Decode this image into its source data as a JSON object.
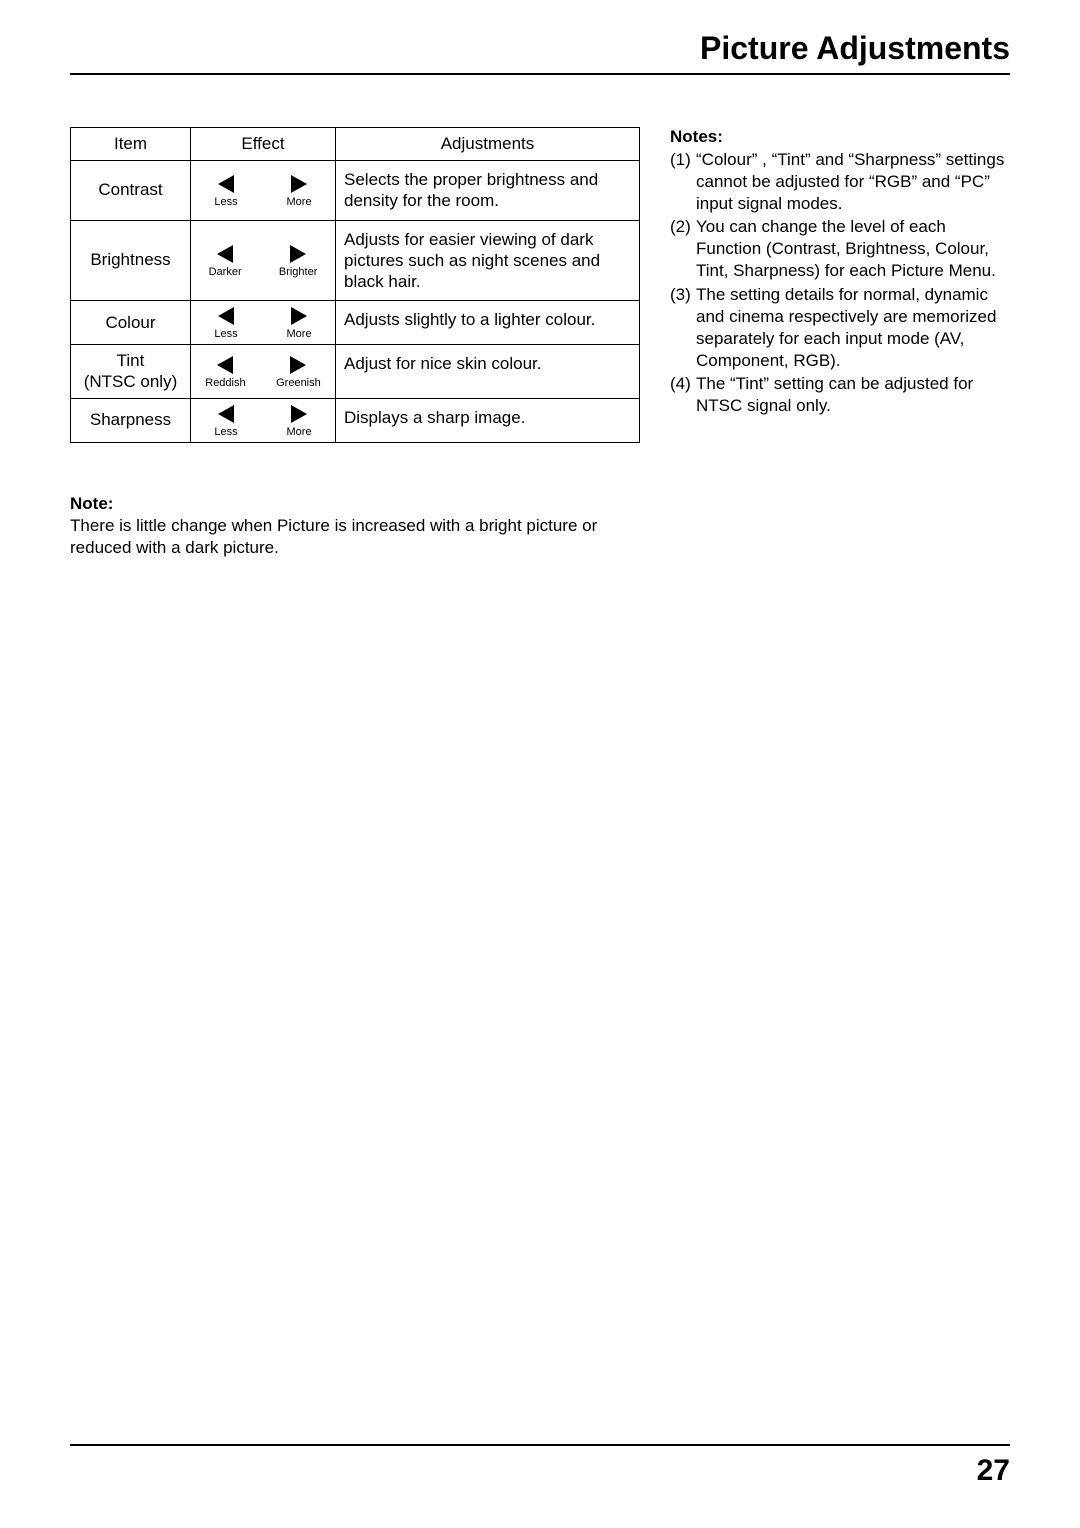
{
  "page_title": "Picture Adjustments",
  "page_number": "27",
  "table": {
    "headers": {
      "item": "Item",
      "effect": "Effect",
      "adjustments": "Adjustments"
    },
    "rows": [
      {
        "item": "Contrast",
        "left_label": "Less",
        "right_label": "More",
        "desc": "Selects the proper brightness and density for the room."
      },
      {
        "item": "Brightness",
        "left_label": "Darker",
        "right_label": "Brighter",
        "desc": "Adjusts for easier viewing of dark pictures such as night scenes and black hair."
      },
      {
        "item": "Colour",
        "left_label": "Less",
        "right_label": "More",
        "desc": "Adjusts slightly to a lighter colour."
      },
      {
        "item": "Tint\n(NTSC only)",
        "left_label": "Reddish",
        "right_label": "Greenish",
        "desc": "Adjust for nice skin colour."
      },
      {
        "item": "Sharpness",
        "left_label": "Less",
        "right_label": "More",
        "desc": "Displays a sharp image."
      }
    ]
  },
  "notes": {
    "heading": "Notes:",
    "items": [
      {
        "num": "(1)",
        "text": "“Colour” , “Tint” and “Sharpness” settings cannot be adjusted for “RGB” and “PC” input signal modes."
      },
      {
        "num": "(2)",
        "text": "You can change the level of each Function (Contrast, Brightness, Colour, Tint, Sharpness) for each Picture Menu."
      },
      {
        "num": "(3)",
        "text": "The setting details for normal, dynamic and cinema respectively are memorized separately for each input mode (AV, Component, RGB)."
      },
      {
        "num": "(4)",
        "text": "The “Tint” setting can be adjusted for NTSC signal only."
      }
    ]
  },
  "bottom_note": {
    "heading": "Note:",
    "text": "There is little change when Picture is increased with a bright picture or reduced with a dark picture."
  }
}
